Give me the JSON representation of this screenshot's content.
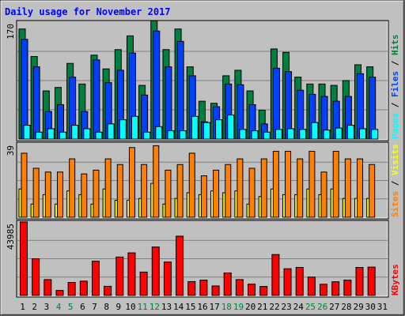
{
  "title": "Daily usage for November 2017",
  "colors": {
    "background": "#c0c0c0",
    "panel": "#c0c0c0",
    "grid": "#808080",
    "title_text": "#0000ff",
    "hits": "#008040",
    "files": "#0040ff",
    "pages": "#00ffff",
    "visits": "#ffff00",
    "sites": "#ff8000",
    "kbytes": "#ff0000",
    "weekday_label": "#000000",
    "weekend_label": "#008040"
  },
  "chart_data": [
    {
      "type": "bar",
      "panel": "hits_files_pages",
      "y_max_label": "170",
      "ylim": [
        0,
        170
      ],
      "right_labels": [
        "Pages",
        "Files",
        "Hits"
      ],
      "right_label_separator": " / ",
      "categories": [
        "1",
        "2",
        "3",
        "4",
        "5",
        "6",
        "7",
        "8",
        "9",
        "10",
        "11",
        "12",
        "13",
        "14",
        "15",
        "16",
        "17",
        "18",
        "19",
        "20",
        "21",
        "22",
        "23",
        "24",
        "25",
        "26",
        "27",
        "28",
        "29",
        "30",
        "31"
      ],
      "series": [
        {
          "name": "Hits",
          "values": [
            160,
            120,
            70,
            75,
            110,
            80,
            122,
            102,
            130,
            150,
            78,
            172,
            130,
            160,
            105,
            55,
            52,
            92,
            100,
            70,
            42,
            131,
            126,
            90,
            80,
            80,
            78,
            85,
            108,
            105,
            0
          ]
        },
        {
          "name": "Files",
          "values": [
            145,
            105,
            40,
            50,
            90,
            40,
            115,
            82,
            100,
            125,
            64,
            157,
            105,
            142,
            92,
            25,
            47,
            80,
            79,
            50,
            22,
            103,
            98,
            71,
            65,
            62,
            55,
            62,
            95,
            90,
            0
          ]
        },
        {
          "name": "Pages",
          "values": [
            20,
            10,
            15,
            10,
            20,
            15,
            10,
            22,
            28,
            33,
            10,
            18,
            12,
            12,
            33,
            24,
            28,
            35,
            14,
            12,
            10,
            14,
            15,
            14,
            24,
            13,
            16,
            20,
            15,
            14,
            0
          ]
        }
      ]
    },
    {
      "type": "bar",
      "panel": "visits_sites",
      "y_max_label": "39",
      "ylim": [
        0,
        39
      ],
      "right_labels": [
        "Sites",
        "Visits"
      ],
      "right_label_separator": " / ",
      "categories": [
        "1",
        "2",
        "3",
        "4",
        "5",
        "6",
        "7",
        "8",
        "9",
        "10",
        "11",
        "12",
        "13",
        "14",
        "15",
        "16",
        "17",
        "18",
        "19",
        "20",
        "21",
        "22",
        "23",
        "24",
        "25",
        "26",
        "27",
        "28",
        "29",
        "30",
        "31"
      ],
      "series": [
        {
          "name": "Sites",
          "values": [
            34,
            26,
            24,
            24,
            31,
            23,
            25,
            31,
            28,
            37,
            28,
            38,
            25,
            28,
            34,
            22,
            25,
            28,
            31,
            26,
            31,
            35,
            35,
            31,
            35,
            24,
            35,
            31,
            31,
            28,
            0
          ]
        },
        {
          "name": "Visits",
          "values": [
            15,
            7,
            12,
            7,
            14,
            12,
            7,
            15,
            9,
            9,
            10,
            18,
            7,
            10,
            13,
            12,
            14,
            13,
            14,
            7,
            11,
            15,
            12,
            12,
            15,
            12,
            15,
            10,
            10,
            10,
            0
          ]
        }
      ]
    },
    {
      "type": "bar",
      "panel": "kbytes",
      "y_max_label": "43985",
      "ylim": [
        0,
        43985
      ],
      "right_labels": [
        "KBytes"
      ],
      "right_label_separator": "",
      "categories": [
        "1",
        "2",
        "3",
        "4",
        "5",
        "6",
        "7",
        "8",
        "9",
        "10",
        "11",
        "12",
        "13",
        "14",
        "15",
        "16",
        "17",
        "18",
        "19",
        "20",
        "21",
        "22",
        "23",
        "24",
        "25",
        "26",
        "27",
        "28",
        "29",
        "30",
        "31"
      ],
      "series": [
        {
          "name": "KBytes",
          "values": [
            43985,
            22000,
            9500,
            3000,
            7800,
            8600,
            20500,
            5500,
            23000,
            25500,
            14000,
            29000,
            20000,
            35500,
            8300,
            9200,
            5700,
            13500,
            9500,
            6800,
            5400,
            24500,
            16000,
            16800,
            11000,
            6700,
            8200,
            9200,
            16800,
            17000,
            0
          ]
        }
      ]
    }
  ],
  "x_labels": [
    {
      "t": "1",
      "we": false
    },
    {
      "t": "2",
      "we": false
    },
    {
      "t": "3",
      "we": false
    },
    {
      "t": "4",
      "we": true
    },
    {
      "t": "5",
      "we": true
    },
    {
      "t": "6",
      "we": false
    },
    {
      "t": "7",
      "we": false
    },
    {
      "t": "8",
      "we": false
    },
    {
      "t": "9",
      "we": false
    },
    {
      "t": "10",
      "we": false
    },
    {
      "t": "11",
      "we": true
    },
    {
      "t": "12",
      "we": true
    },
    {
      "t": "13",
      "we": false
    },
    {
      "t": "14",
      "we": false
    },
    {
      "t": "15",
      "we": false
    },
    {
      "t": "16",
      "we": false
    },
    {
      "t": "17",
      "we": false
    },
    {
      "t": "18",
      "we": true
    },
    {
      "t": "19",
      "we": true
    },
    {
      "t": "20",
      "we": false
    },
    {
      "t": "21",
      "we": false
    },
    {
      "t": "22",
      "we": false
    },
    {
      "t": "23",
      "we": false
    },
    {
      "t": "24",
      "we": false
    },
    {
      "t": "25",
      "we": true
    },
    {
      "t": "26",
      "we": true
    },
    {
      "t": "27",
      "we": false
    },
    {
      "t": "28",
      "we": false
    },
    {
      "t": "29",
      "we": false
    },
    {
      "t": "30",
      "we": false
    },
    {
      "t": "31",
      "we": false
    }
  ]
}
